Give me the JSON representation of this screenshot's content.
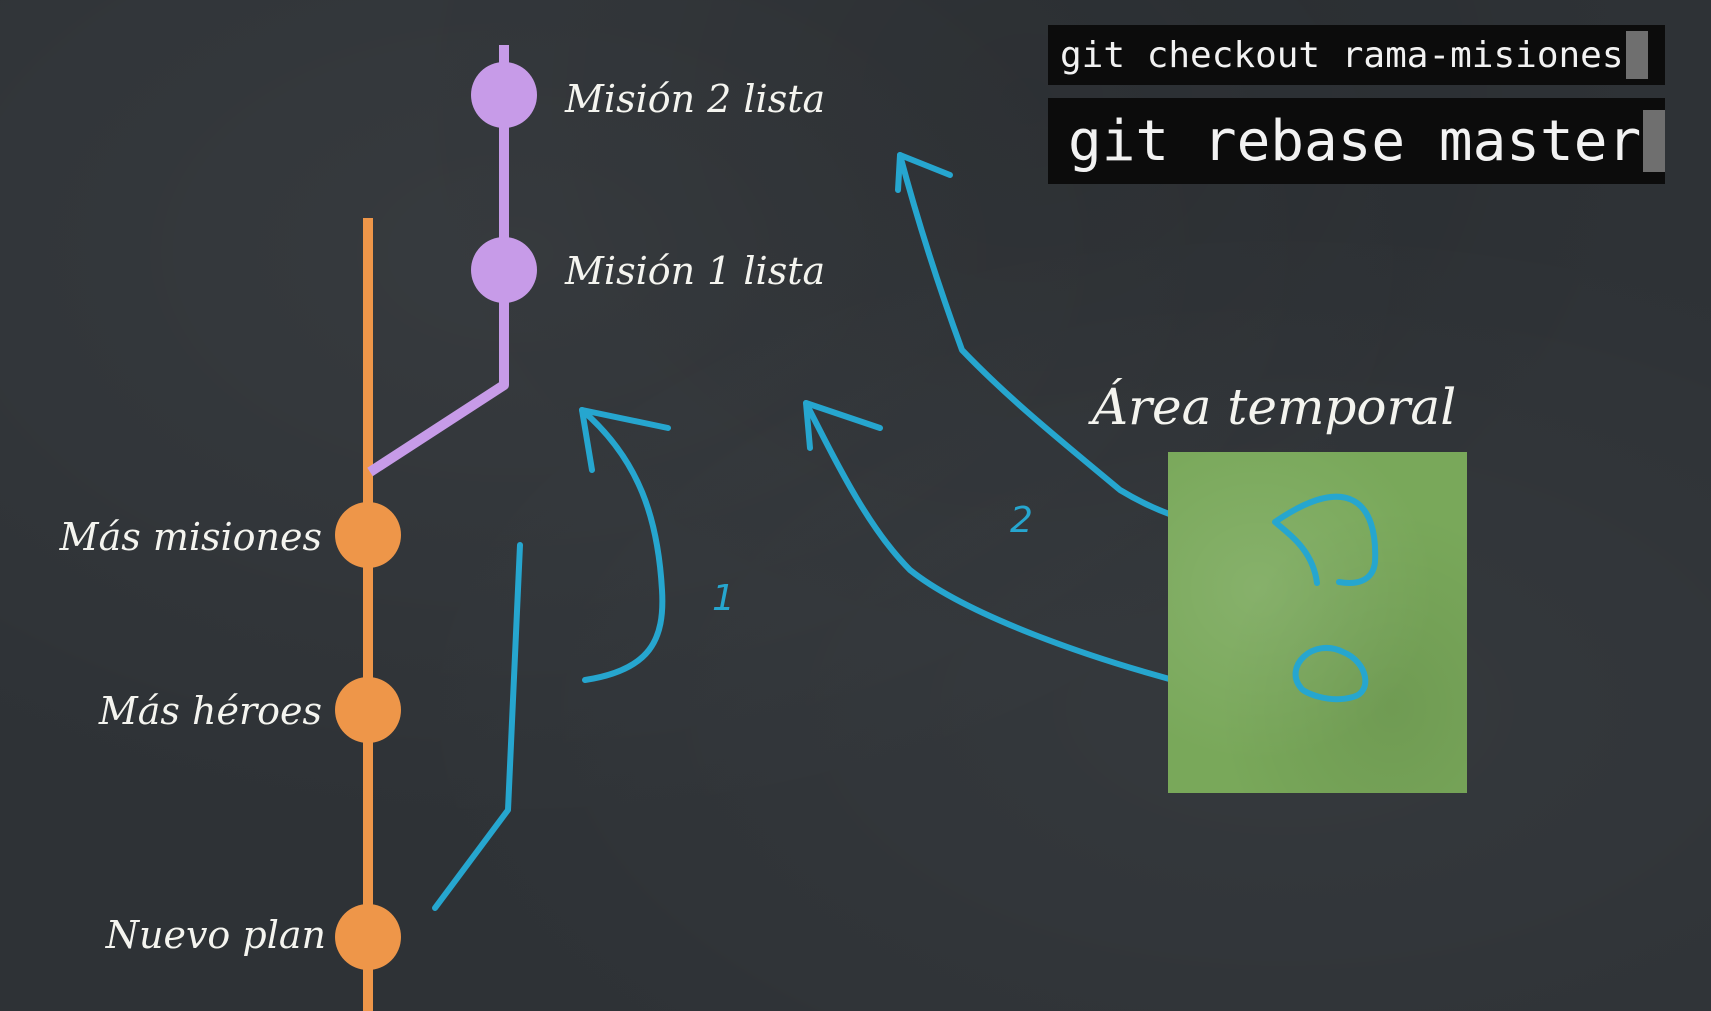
{
  "commits": {
    "master": [
      {
        "label": "Más misiones"
      },
      {
        "label": "Más héroes"
      },
      {
        "label": "Nuevo plan"
      }
    ],
    "branch": [
      {
        "label": "Misión 2 lista"
      },
      {
        "label": "Misión 1 lista"
      }
    ]
  },
  "temp_area": {
    "label": "Área temporal"
  },
  "steps": {
    "step1": "1",
    "step2": "2"
  },
  "terminal": {
    "line1": "git checkout rama-misiones",
    "line2": "git rebase master"
  },
  "colors": {
    "background": "#2e3236",
    "master_branch": "#ee9649",
    "feature_branch": "#c79be8",
    "arrows": "#26a6cf",
    "temp_area": "#79a85a",
    "text": "#f4f4ef"
  },
  "icons": {
    "commit_node": "circle",
    "arrow": "hand-drawn-arrow"
  }
}
